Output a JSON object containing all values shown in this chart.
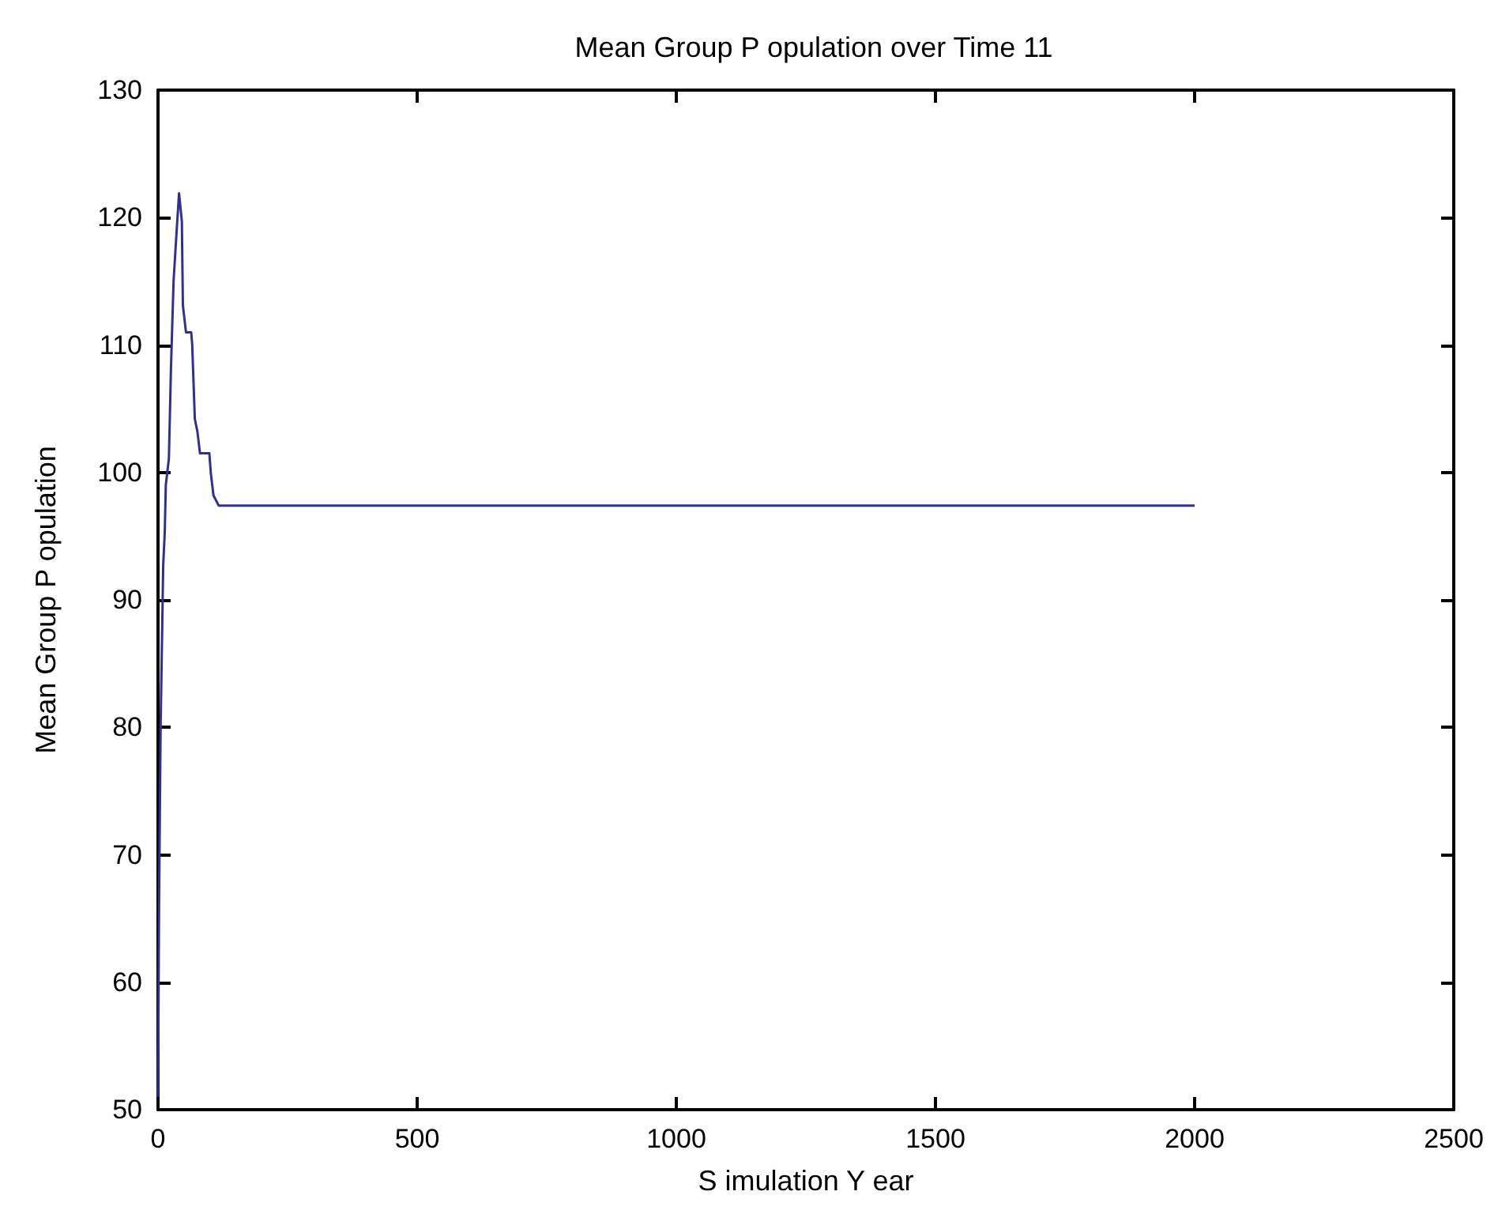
{
  "chart_data": {
    "type": "line",
    "title": "Mean Group P opulation over Time 11",
    "xlabel": "S imulation Y ear",
    "ylabel": "Mean Group P opulation",
    "x": [
      0,
      2,
      5,
      10,
      13,
      15,
      21,
      25,
      30,
      36,
      40.6,
      46,
      48,
      54,
      64,
      66,
      71,
      76,
      81,
      99,
      102,
      107,
      117,
      2000
    ],
    "series": [
      {
        "color": "#2e3192",
        "values": [
          51,
          66,
          80,
          92.7,
          95.3,
          99,
          101.1,
          108.2,
          115,
          119,
          121.9,
          119.7,
          113.1,
          111,
          111,
          110,
          104.2,
          103.2,
          101.5,
          101.5,
          99.9,
          98.2,
          97.4,
          97.4
        ]
      }
    ],
    "xlim": [
      0,
      2500
    ],
    "xticks": [
      0,
      500,
      1000,
      1500,
      2000,
      2500
    ],
    "ylim": [
      50,
      130
    ],
    "yticks": [
      50,
      60,
      70,
      80,
      90,
      100,
      110,
      120,
      130
    ],
    "grid": false,
    "marker": "none",
    "line_style": "solid"
  }
}
